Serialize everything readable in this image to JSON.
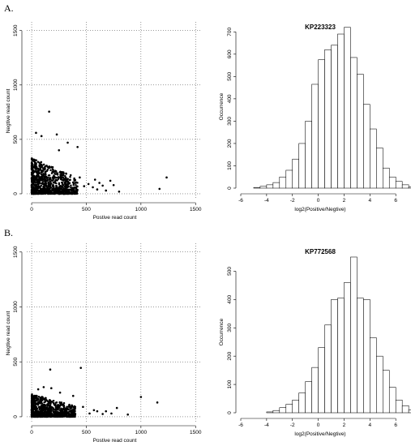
{
  "figure": {
    "panel_labels": [
      "A.",
      "B."
    ]
  },
  "chart_data": [
    {
      "id": "A-scatter",
      "type": "scatter",
      "xlabel": "Postive read count",
      "ylabel": "Negtive read count",
      "xlim": [
        -30,
        1550
      ],
      "ylim": [
        -30,
        1550
      ],
      "xticks": [
        0,
        500,
        1000,
        1500
      ],
      "yticks": [
        0,
        500,
        1000,
        1500
      ],
      "grid": true,
      "points": [
        [
          1235,
          150
        ],
        [
          1170,
          45
        ],
        [
          160,
          755
        ],
        [
          40,
          560
        ],
        [
          90,
          530
        ],
        [
          230,
          545
        ],
        [
          420,
          430
        ],
        [
          330,
          470
        ],
        [
          250,
          400
        ],
        [
          520,
          90
        ],
        [
          560,
          60
        ],
        [
          620,
          100
        ],
        [
          680,
          30
        ],
        [
          720,
          120
        ],
        [
          600,
          40
        ],
        [
          750,
          80
        ],
        [
          800,
          20
        ],
        [
          480,
          70
        ],
        [
          440,
          150
        ],
        [
          650,
          75
        ],
        [
          580,
          130
        ]
      ],
      "cluster": {
        "x_range": [
          0,
          420
        ],
        "y_range": [
          0,
          330
        ],
        "count": 900
      }
    },
    {
      "id": "A-hist",
      "type": "bar",
      "title": "KP223323",
      "xlabel": "log2(Positive/Negtive)",
      "ylabel": "Occurrence",
      "xlim": [
        -6,
        6.3
      ],
      "ylim": [
        0,
        730
      ],
      "xticks": [
        -6,
        -4,
        -2,
        0,
        2,
        4,
        6
      ],
      "yticks": [
        0,
        100,
        200,
        300,
        400,
        500,
        600,
        700
      ],
      "bin_start": -5,
      "bin_width": 0.5,
      "values": [
        3,
        8,
        15,
        25,
        50,
        80,
        130,
        200,
        300,
        465,
        575,
        620,
        640,
        690,
        720,
        585,
        510,
        375,
        265,
        180,
        90,
        50,
        30,
        15,
        5,
        2
      ]
    },
    {
      "id": "B-scatter",
      "type": "scatter",
      "xlabel": "Postive read count",
      "ylabel": "Negtive read count",
      "xlim": [
        -30,
        1550
      ],
      "ylim": [
        -30,
        1550
      ],
      "xticks": [
        0,
        500,
        1000,
        1500
      ],
      "yticks": [
        0,
        500,
        1000,
        1500
      ],
      "grid": true,
      "points": [
        [
          450,
          445
        ],
        [
          170,
          430
        ],
        [
          1000,
          180
        ],
        [
          1150,
          130
        ],
        [
          780,
          80
        ],
        [
          730,
          30
        ],
        [
          680,
          50
        ],
        [
          530,
          30
        ],
        [
          470,
          90
        ],
        [
          600,
          50
        ],
        [
          880,
          20
        ],
        [
          650,
          25
        ],
        [
          570,
          60
        ],
        [
          110,
          270
        ],
        [
          60,
          250
        ],
        [
          180,
          260
        ],
        [
          260,
          220
        ],
        [
          380,
          190
        ]
      ],
      "cluster": {
        "x_range": [
          0,
          400
        ],
        "y_range": [
          0,
          210
        ],
        "count": 850
      }
    },
    {
      "id": "B-hist",
      "type": "bar",
      "title": "KP772568",
      "xlabel": "log2(Positive/Negtive)",
      "ylabel": "Occurrence",
      "xlim": [
        -6,
        6.3
      ],
      "ylim": [
        0,
        570
      ],
      "xticks": [
        -6,
        -4,
        -2,
        0,
        2,
        4,
        6
      ],
      "yticks": [
        0,
        100,
        200,
        300,
        400,
        500
      ],
      "bin_start": -4,
      "bin_width": 0.5,
      "values": [
        3,
        8,
        18,
        30,
        45,
        70,
        110,
        160,
        230,
        310,
        400,
        405,
        460,
        550,
        405,
        400,
        265,
        200,
        150,
        90,
        45,
        25,
        10,
        5
      ]
    }
  ]
}
